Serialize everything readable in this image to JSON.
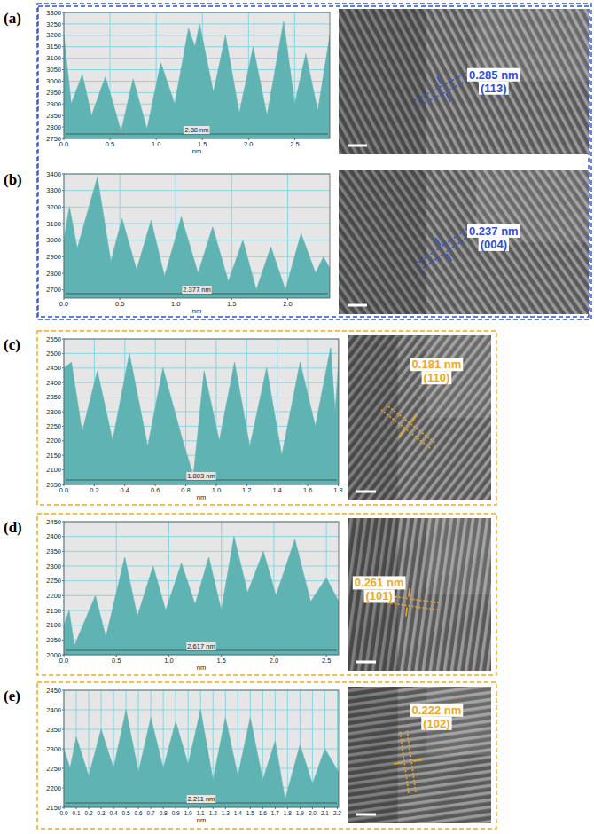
{
  "chart_data": [
    {
      "type": "area",
      "title": "(a)",
      "xlabel": "nm",
      "color": "#5fb3b3",
      "grid": true,
      "annotations": [
        "2.88 nm",
        "0.285 nm",
        "(113)"
      ],
      "x": [
        0,
        0.08,
        0.2,
        0.3,
        0.45,
        0.62,
        0.75,
        0.9,
        1.05,
        1.2,
        1.35,
        1.42,
        1.47,
        1.62,
        1.75,
        1.9,
        2.05,
        2.2,
        2.38,
        2.5,
        2.62,
        2.75,
        2.88
      ],
      "values": [
        3200,
        2900,
        3030,
        2850,
        3020,
        2780,
        3010,
        2790,
        3080,
        2900,
        3230,
        3150,
        3250,
        2950,
        3200,
        2860,
        3150,
        2850,
        3260,
        2900,
        3120,
        2870,
        3200
      ],
      "xlim": [
        0,
        2.88
      ],
      "ylim": [
        2750,
        3300
      ],
      "xticks": [
        {
          "value": 0,
          "label": "0.0"
        },
        0.5,
        {
          "value": 1,
          "label": "1.0"
        },
        1.5,
        {
          "value": 2,
          "label": "2.0"
        },
        2.5
      ],
      "yticks": [
        2750,
        2800,
        2850,
        2900,
        2950,
        3000,
        3050,
        3100,
        3150,
        3200,
        3250,
        3300
      ]
    },
    {
      "type": "area",
      "title": "(b)",
      "xlabel": "nm",
      "color": "#5fb3b3",
      "grid": true,
      "annotations": [
        "2.377 nm",
        "0.237 nm",
        "(004)"
      ],
      "x": [
        0,
        0.05,
        0.12,
        0.3,
        0.42,
        0.52,
        0.65,
        0.78,
        0.9,
        1.05,
        1.2,
        1.33,
        1.47,
        1.6,
        1.72,
        1.85,
        1.98,
        2.12,
        2.25,
        2.32,
        2.377
      ],
      "values": [
        3000,
        3200,
        2950,
        3380,
        2870,
        3130,
        2820,
        3120,
        2780,
        3140,
        2800,
        3080,
        2750,
        3000,
        2700,
        2960,
        2700,
        3040,
        2800,
        2900,
        2830
      ],
      "xlim": [
        0,
        2.377
      ],
      "ylim": [
        2650,
        3400
      ],
      "xticks": [
        {
          "value": 0,
          "label": "0.0"
        },
        0.5,
        {
          "value": 1,
          "label": "1.0"
        },
        1.5,
        {
          "value": 2,
          "label": "2.0"
        }
      ],
      "yticks": [
        2700,
        2800,
        2900,
        3000,
        3100,
        3200,
        3300,
        3400
      ]
    },
    {
      "type": "area",
      "title": "(c)",
      "xlabel": "nm",
      "color": "#5fb3b3",
      "grid": true,
      "annotations": [
        "1.803 nm",
        "0.181 nm",
        "(110)"
      ],
      "x": [
        0,
        0.05,
        0.12,
        0.22,
        0.32,
        0.43,
        0.55,
        0.65,
        0.78,
        0.85,
        0.92,
        1.02,
        1.12,
        1.22,
        1.33,
        1.43,
        1.55,
        1.65,
        1.75,
        1.78,
        1.803
      ],
      "values": [
        2450,
        2470,
        2230,
        2440,
        2200,
        2500,
        2180,
        2450,
        2200,
        2080,
        2440,
        2200,
        2470,
        2180,
        2450,
        2150,
        2470,
        2250,
        2520,
        2300,
        2480
      ],
      "xlim": [
        0,
        1.803
      ],
      "ylim": [
        2050,
        2550
      ],
      "xticks": [
        {
          "value": 0,
          "label": "0.0"
        },
        0.2,
        0.4,
        0.6,
        0.8,
        {
          "value": 1,
          "label": "1.0"
        },
        1.2,
        1.4,
        1.6,
        1.8
      ],
      "yticks": [
        2050,
        2100,
        2150,
        2200,
        2250,
        2300,
        2350,
        2400,
        2450,
        2500,
        2550
      ]
    },
    {
      "type": "area",
      "title": "(d)",
      "xlabel": "nm",
      "color": "#5fb3b3",
      "grid": true,
      "annotations": [
        "2.617 nm",
        "0.261 nm",
        "(101)"
      ],
      "x": [
        0,
        0.05,
        0.1,
        0.3,
        0.4,
        0.58,
        0.7,
        0.85,
        0.97,
        1.12,
        1.25,
        1.38,
        1.5,
        1.62,
        1.75,
        1.9,
        2.02,
        2.2,
        2.35,
        2.5,
        2.617
      ],
      "values": [
        2100,
        2150,
        2030,
        2200,
        2060,
        2330,
        2130,
        2300,
        2150,
        2310,
        2170,
        2330,
        2150,
        2400,
        2210,
        2350,
        2200,
        2390,
        2180,
        2260,
        2180
      ],
      "xlim": [
        0,
        2.617
      ],
      "ylim": [
        2000,
        2450
      ],
      "xticks": [
        {
          "value": 0,
          "label": "0.0"
        },
        0.5,
        {
          "value": 1,
          "label": "1.0"
        },
        1.5,
        {
          "value": 2,
          "label": "2.0"
        },
        2.5
      ],
      "yticks": [
        2000,
        2050,
        2100,
        2150,
        2200,
        2250,
        2300,
        2350,
        2400,
        2450
      ]
    },
    {
      "type": "area",
      "title": "(e)",
      "xlabel": "nm",
      "color": "#5fb3b3",
      "grid": true,
      "annotations": [
        "2.211 nm",
        "0.222 nm",
        "(102)"
      ],
      "x": [
        0,
        0.05,
        0.1,
        0.2,
        0.3,
        0.4,
        0.5,
        0.6,
        0.7,
        0.8,
        0.9,
        1.0,
        1.1,
        1.2,
        1.3,
        1.4,
        1.5,
        1.6,
        1.7,
        1.78,
        1.9,
        2.0,
        2.1,
        2.211
      ],
      "values": [
        2300,
        2250,
        2330,
        2230,
        2350,
        2250,
        2400,
        2240,
        2380,
        2250,
        2370,
        2260,
        2400,
        2220,
        2380,
        2230,
        2380,
        2220,
        2320,
        2170,
        2310,
        2210,
        2300,
        2240
      ],
      "xlim": [
        0,
        2.211
      ],
      "ylim": [
        2150,
        2450
      ],
      "xticks": [
        {
          "value": 0,
          "label": "0.0"
        },
        0.1,
        0.2,
        0.3,
        0.4,
        0.5,
        0.6,
        0.7,
        0.8,
        0.9,
        {
          "value": 1,
          "label": "1.0"
        },
        1.1,
        1.2,
        1.3,
        1.4,
        1.5,
        1.6,
        1.7,
        1.8,
        1.9,
        {
          "value": 2,
          "label": "2.0"
        },
        2.1,
        2.2
      ],
      "yticks": [
        2150,
        2200,
        2250,
        2300,
        2350,
        2400,
        2450
      ]
    }
  ]
}
